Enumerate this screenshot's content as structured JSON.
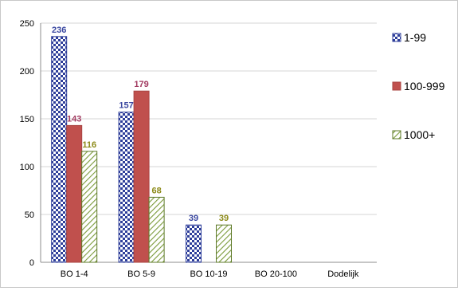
{
  "chart_data": {
    "type": "bar",
    "categories": [
      "BO 1-4",
      "BO 5-9",
      "BO 10-19",
      "BO 20-100",
      "Dodelijk"
    ],
    "series": [
      {
        "name": "1-99",
        "values": [
          236,
          157,
          39,
          null,
          null
        ],
        "color": "#2E3E9A",
        "pattern": "checker",
        "label_color": "#3A47A0"
      },
      {
        "name": "100-999",
        "values": [
          143,
          179,
          null,
          null,
          null
        ],
        "color": "#C0504D",
        "pattern": "solid",
        "label_color": "#A23A60"
      },
      {
        "name": "1000+",
        "values": [
          116,
          68,
          39,
          null,
          null
        ],
        "color": "#9BBB59",
        "pattern": "diagonal",
        "label_color": "#8C8A18"
      }
    ],
    "y_ticks": [
      "0",
      "50",
      "100",
      "150",
      "200",
      "250"
    ],
    "ylim": [
      0,
      250
    ],
    "grid": true,
    "legend_position": "right"
  }
}
